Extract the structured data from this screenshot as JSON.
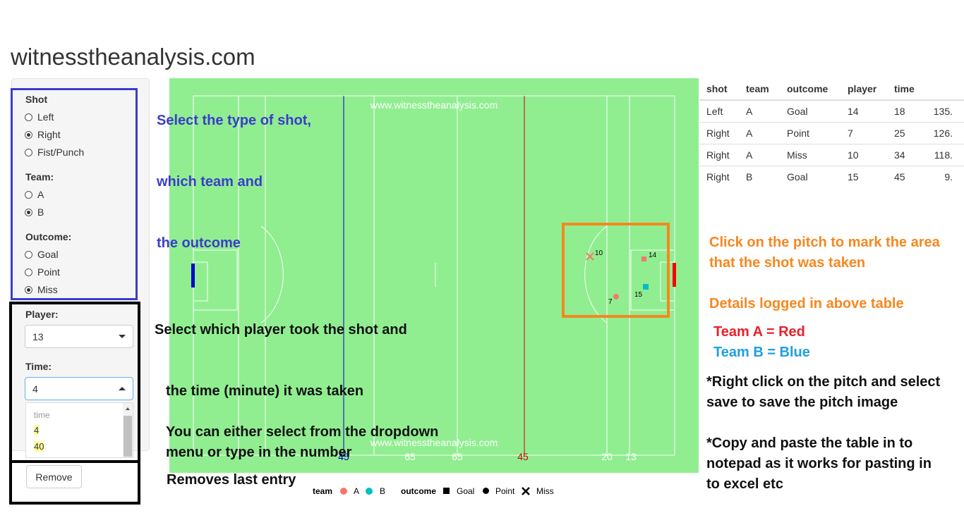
{
  "site_title": "witnesstheanalysis.com",
  "sidebar": {
    "shot": {
      "label": "Shot",
      "options": [
        "Left",
        "Right",
        "Fist/Punch"
      ],
      "selected": 1
    },
    "team": {
      "label": "Team:",
      "options": [
        "A",
        "B"
      ],
      "selected": 1
    },
    "outcome": {
      "label": "Outcome:",
      "options": [
        "Goal",
        "Point",
        "Miss"
      ],
      "selected": 2
    },
    "player": {
      "label": "Player:",
      "value": "13"
    },
    "time": {
      "label": "Time:",
      "value": "4",
      "dropdown": {
        "header": "time",
        "options": [
          "4",
          "40"
        ]
      }
    },
    "remove_label": "Remove"
  },
  "pitch": {
    "watermark": "www.witnesstheanalysis.com",
    "distance_labels": [
      {
        "text": "45",
        "color": "#0000cc"
      },
      {
        "text": "65",
        "color": "#ffffff"
      },
      {
        "text": "65",
        "color": "#ffffff"
      },
      {
        "text": "45",
        "color": "#cc0000"
      },
      {
        "text": "20",
        "color": "#ffffff"
      },
      {
        "text": "13",
        "color": "#ffffff"
      }
    ],
    "shot_markers": [
      {
        "player": "10",
        "team": "A",
        "outcome": "Miss"
      },
      {
        "player": "14",
        "team": "A",
        "outcome": "Goal"
      },
      {
        "player": "15",
        "team": "B",
        "outcome": "Goal"
      },
      {
        "player": "7",
        "team": "A",
        "outcome": "Point"
      }
    ],
    "colors": {
      "grass": "#90ee90",
      "team_a": "#f8766d",
      "team_b": "#00bfc4",
      "goal_left": "#0000cc",
      "goal_right": "#ff0000"
    }
  },
  "legend": {
    "team_title": "team",
    "team_a": "A",
    "team_b": "B",
    "outcome_title": "outcome",
    "goal": "Goal",
    "point": "Point",
    "miss": "Miss"
  },
  "table": {
    "headers": [
      "shot",
      "team",
      "outcome",
      "player",
      "time",
      ""
    ],
    "rows": [
      [
        "Left",
        "A",
        "Goal",
        "14",
        "18",
        "135."
      ],
      [
        "Right",
        "A",
        "Point",
        "7",
        "25",
        "126."
      ],
      [
        "Right",
        "A",
        "Miss",
        "10",
        "34",
        "118."
      ],
      [
        "Right",
        "B",
        "Goal",
        "15",
        "45",
        "9."
      ]
    ]
  },
  "annotations": {
    "select_shot": "Select the type of shot,",
    "which_team": "which team and",
    "the_outcome": "the outcome",
    "select_player": "Select  which  player took the shot and",
    "the_time": "the time (minute) it was taken",
    "dropdown_line1": "You can either select from the dropdown",
    "dropdown_line2": "menu or type in the number",
    "removes": "Removes last entry",
    "click_line1": "Click on the pitch to mark the area",
    "click_line2": "that the shot was taken",
    "details_logged": "Details logged in above table",
    "team_a_red": "Team A = Red",
    "team_b_blue": "Team B = Blue",
    "right_click_1": "*Right click on the pitch and select",
    "right_click_2": "save to save the pitch image",
    "copy_1": "*Copy and paste the table in to",
    "copy_2": "notepad as it works for pasting in",
    "copy_3": "to excel etc"
  },
  "annotation_colors": {
    "team_a": "#e8202a",
    "team_b": "#1ea0e0"
  }
}
